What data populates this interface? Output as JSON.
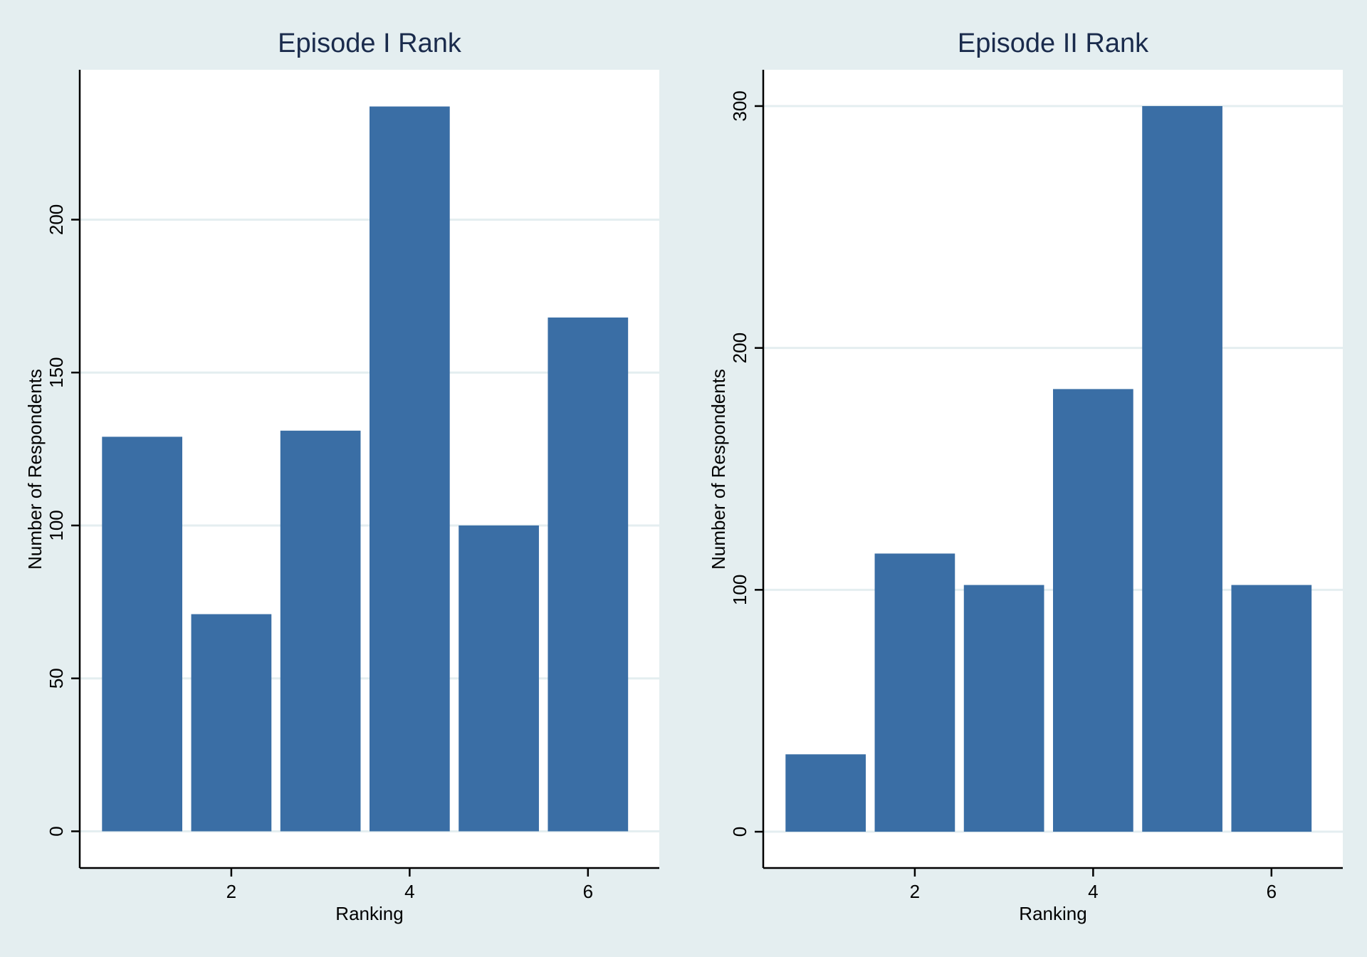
{
  "colors": {
    "background": "#e4eef0",
    "plot_background": "#ffffff",
    "bar": "#3a6ea5",
    "gridline": "#e4eef0",
    "axis": "#000000",
    "title": "#1a2b4c"
  },
  "chart_data": [
    {
      "type": "bar",
      "title": "Episode I Rank",
      "xlabel": "Ranking",
      "ylabel": "Number of Respondents",
      "x": [
        1,
        2,
        3,
        4,
        5,
        6
      ],
      "values": [
        129,
        71,
        131,
        237,
        100,
        168
      ],
      "xlim": [
        0.3,
        6.8
      ],
      "ylim": [
        -12,
        249
      ],
      "xticks": [
        2,
        4,
        6
      ],
      "yticks": [
        0,
        50,
        100,
        150,
        200
      ],
      "grid": true,
      "legend": "none"
    },
    {
      "type": "bar",
      "title": "Episode II Rank",
      "xlabel": "Ranking",
      "ylabel": "Number of Respondents",
      "x": [
        1,
        2,
        3,
        4,
        5,
        6
      ],
      "values": [
        32,
        115,
        102,
        183,
        300,
        102
      ],
      "xlim": [
        0.3,
        6.8
      ],
      "ylim": [
        -15,
        315
      ],
      "xticks": [
        2,
        4,
        6
      ],
      "yticks": [
        0,
        100,
        200,
        300
      ],
      "grid": true,
      "legend": "none"
    }
  ]
}
